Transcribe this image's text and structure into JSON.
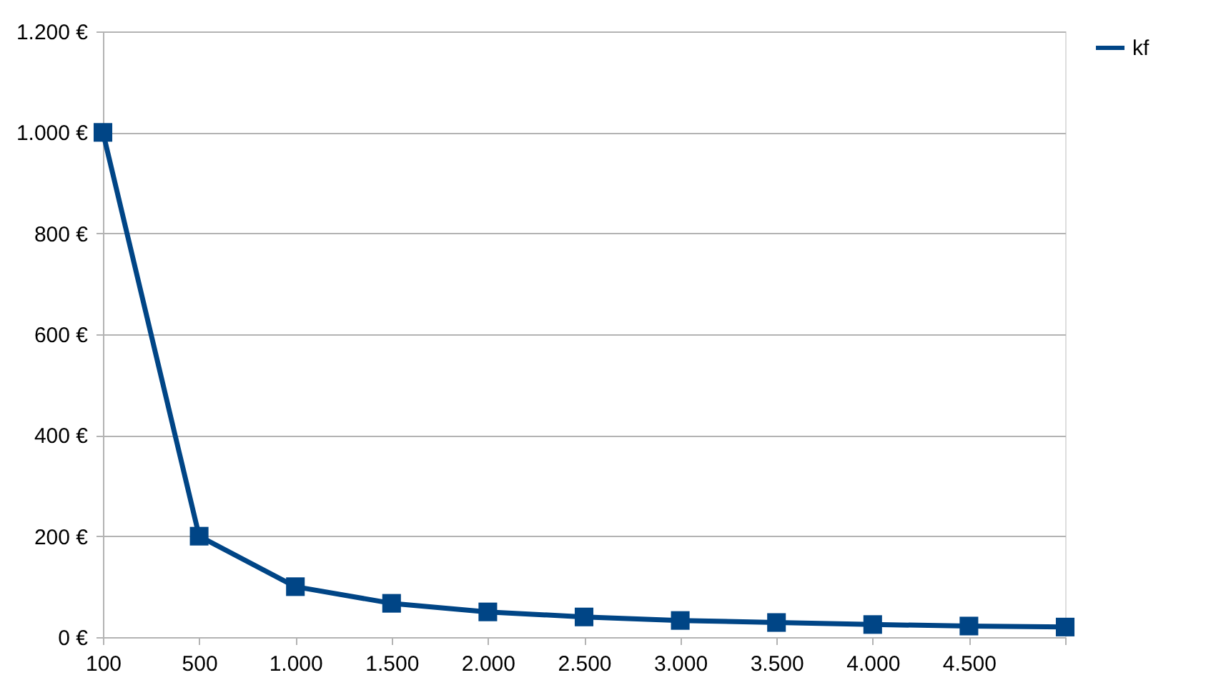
{
  "chart_data": {
    "type": "line",
    "categories": [
      "100",
      "500",
      "1.000",
      "1.500",
      "2.000",
      "2.500",
      "3.000",
      "3.500",
      "4.000",
      "4.500",
      null
    ],
    "series": [
      {
        "name": "kf",
        "color": "#004586",
        "values": [
          1000,
          200,
          100,
          67,
          50,
          40,
          33,
          29,
          25,
          22,
          20
        ]
      }
    ],
    "ylim": [
      0,
      1200
    ],
    "yticks": [
      {
        "value": 0,
        "label": "0 €"
      },
      {
        "value": 200,
        "label": "200 €"
      },
      {
        "value": 400,
        "label": "400 €"
      },
      {
        "value": 600,
        "label": "600 €"
      },
      {
        "value": 800,
        "label": "800 €"
      },
      {
        "value": 1000,
        "label": "1.000 €"
      },
      {
        "value": 1200,
        "label": "1.200 €"
      }
    ],
    "grid": "y",
    "legend": "right",
    "marker": "square",
    "line_style": "solid"
  }
}
